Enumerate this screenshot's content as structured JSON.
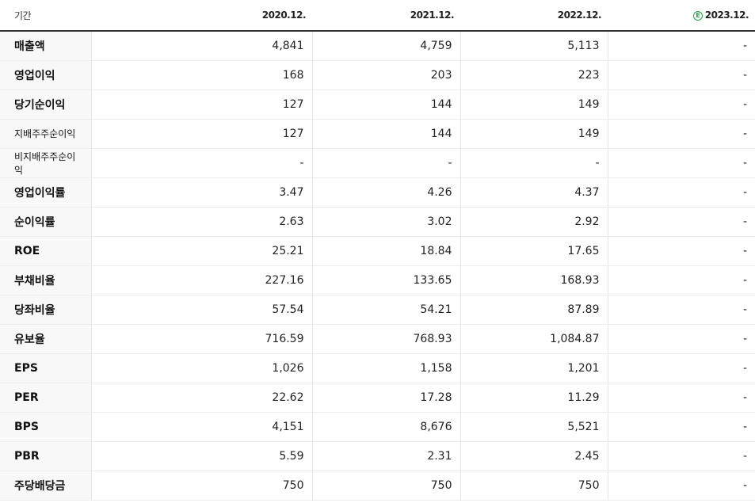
{
  "header": {
    "label": "기간",
    "periods": [
      "2020.12.",
      "2021.12.",
      "2022.12.",
      "2023.12."
    ],
    "estimate_badge": "E"
  },
  "rows": [
    {
      "label": "매출액",
      "values": [
        "4,841",
        "4,759",
        "5,113",
        "-"
      ]
    },
    {
      "label": "영업이익",
      "values": [
        "168",
        "203",
        "223",
        "-"
      ]
    },
    {
      "label": "당기순이익",
      "values": [
        "127",
        "144",
        "149",
        "-"
      ]
    },
    {
      "label": "지배주주순이익",
      "values": [
        "127",
        "144",
        "149",
        "-"
      ]
    },
    {
      "label": "비지배주주순이익",
      "values": [
        "-",
        "-",
        "-",
        "-"
      ]
    },
    {
      "label": "영업이익률",
      "values": [
        "3.47",
        "4.26",
        "4.37",
        "-"
      ]
    },
    {
      "label": "순이익률",
      "values": [
        "2.63",
        "3.02",
        "2.92",
        "-"
      ]
    },
    {
      "label": "ROE",
      "values": [
        "25.21",
        "18.84",
        "17.65",
        "-"
      ]
    },
    {
      "label": "부채비율",
      "values": [
        "227.16",
        "133.65",
        "168.93",
        "-"
      ]
    },
    {
      "label": "당좌비율",
      "values": [
        "57.54",
        "54.21",
        "87.89",
        "-"
      ]
    },
    {
      "label": "유보율",
      "values": [
        "716.59",
        "768.93",
        "1,084.87",
        "-"
      ]
    },
    {
      "label": "EPS",
      "values": [
        "1,026",
        "1,158",
        "1,201",
        "-"
      ]
    },
    {
      "label": "PER",
      "values": [
        "22.62",
        "17.28",
        "11.29",
        "-"
      ]
    },
    {
      "label": "BPS",
      "values": [
        "4,151",
        "8,676",
        "5,521",
        "-"
      ]
    },
    {
      "label": "PBR",
      "values": [
        "5.59",
        "2.31",
        "2.45",
        "-"
      ]
    },
    {
      "label": "주당배당금",
      "values": [
        "750",
        "750",
        "750",
        "-"
      ]
    }
  ],
  "colors": {
    "estimate_accent": "#2aa04a",
    "header_rule": "#333333",
    "label_bg": "#f8f8f8"
  }
}
